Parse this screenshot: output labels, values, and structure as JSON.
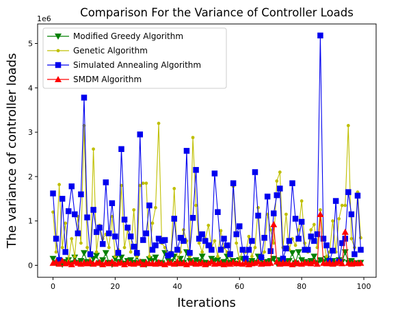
{
  "chart_data": {
    "type": "line",
    "title": "Comparison For the Variance of Controller Loads",
    "xlabel": "Iterations",
    "ylabel": "The variance of controller loads",
    "y_offset_label": "1e6",
    "xlim": [
      -4.95,
      103.95
    ],
    "ylim": [
      -0.27,
      5.44
    ],
    "xticks": [
      0,
      20,
      40,
      60,
      80,
      100
    ],
    "yticks": [
      0,
      1,
      2,
      3,
      4,
      5
    ],
    "grid": false,
    "legend_position": "top-left",
    "series": [
      {
        "name": "Modified Greedy Algorithm",
        "color": "#008000",
        "marker": "triangle-down",
        "values": [
          0.15,
          0.05,
          0.1,
          0.02,
          0.08,
          0.12,
          0.05,
          0.18,
          0.06,
          0.1,
          0.28,
          0.08,
          0.04,
          0.15,
          0.22,
          0.05,
          0.12,
          0.28,
          0.06,
          0.02,
          0.15,
          0.08,
          0.18,
          0.04,
          0.1,
          0.12,
          0.06,
          0.2,
          0.05,
          0.08,
          0.02,
          0.14,
          0.1,
          0.18,
          0.06,
          0.05,
          0.28,
          0.12,
          0.08,
          0.2,
          0.04,
          0.15,
          0.06,
          0.3,
          0.1,
          0.05,
          0.12,
          0.08,
          0.2,
          0.06,
          0.04,
          0.15,
          0.1,
          0.12,
          0.05,
          0.08,
          0.2,
          0.06,
          0.1,
          0.04,
          0.12,
          0.15,
          0.08,
          0.05,
          0.1,
          0.06,
          0.2,
          0.12,
          0.04,
          0.08,
          0.1,
          0.15,
          0.05,
          0.12,
          0.06,
          0.08,
          0.1,
          0.28,
          0.05,
          0.3,
          0.12,
          0.08,
          0.06,
          0.1,
          0.2,
          0.05,
          0.12,
          0.08,
          0.15,
          0.06,
          0.1,
          0.05,
          0.12,
          0.08,
          0.3,
          0.06,
          0.1,
          0.04,
          0.05,
          0.06
        ]
      },
      {
        "name": "Genetic Algorithm",
        "color": "#bfbf00",
        "marker": "point",
        "values": [
          1.2,
          0.3,
          1.82,
          0.4,
          0.95,
          0.1,
          0.6,
          0.2,
          1.1,
          0.5,
          3.15,
          0.4,
          0.05,
          2.62,
          0.3,
          0.9,
          0.6,
          0.7,
          0.4,
          1.1,
          0.2,
          0.35,
          1.8,
          0.4,
          0.8,
          0.3,
          1.25,
          0.2,
          1.8,
          1.85,
          1.85,
          0.2,
          0.95,
          1.3,
          3.2,
          0.5,
          0.4,
          0.2,
          0.3,
          1.73,
          0.1,
          0.3,
          0.8,
          0.55,
          0.2,
          2.88,
          1.35,
          0.5,
          0.3,
          0.6,
          0.9,
          0.4,
          0.55,
          0.2,
          0.78,
          0.4,
          0.3,
          0.2,
          1.78,
          0.5,
          0.1,
          0.35,
          0.3,
          0.65,
          0.2,
          0.4,
          1.3,
          0.2,
          0.3,
          1.15,
          0.8,
          0.5,
          1.9,
          2.1,
          0.4,
          1.15,
          0.35,
          0.6,
          0.45,
          0.8,
          1.45,
          0.5,
          0.3,
          0.8,
          0.92,
          0.4,
          1.25,
          0.6,
          0.2,
          0.3,
          1.0,
          0.3,
          1.05,
          1.35,
          1.35,
          3.15,
          0.6,
          0.4,
          1.65,
          0.62
        ]
      },
      {
        "name": "Simulated Annealing Algorithm",
        "color": "#0000ee",
        "marker": "square",
        "values": [
          1.62,
          0.6,
          0.12,
          1.5,
          0.3,
          1.22,
          1.78,
          1.15,
          0.72,
          1.6,
          3.78,
          1.08,
          0.25,
          1.25,
          0.75,
          0.85,
          0.48,
          1.87,
          0.72,
          1.4,
          0.65,
          0.28,
          2.62,
          1.03,
          0.85,
          0.65,
          0.42,
          0.28,
          2.95,
          0.57,
          0.72,
          1.35,
          0.35,
          0.45,
          0.6,
          0.55,
          0.57,
          0.22,
          0.25,
          1.05,
          0.35,
          0.62,
          0.55,
          2.58,
          0.28,
          1.07,
          2.15,
          0.6,
          0.7,
          0.55,
          0.45,
          0.35,
          2.07,
          1.2,
          0.35,
          0.6,
          0.45,
          0.25,
          1.85,
          0.7,
          0.88,
          0.35,
          0.15,
          0.35,
          0.55,
          2.1,
          1.12,
          0.18,
          0.62,
          1.55,
          0.32,
          1.17,
          1.58,
          1.73,
          0.15,
          0.38,
          0.55,
          1.85,
          1.05,
          0.6,
          0.98,
          0.35,
          0.35,
          0.65,
          0.55,
          0.7,
          5.18,
          0.6,
          0.45,
          0.1,
          0.33,
          1.45,
          0.08,
          0.5,
          0.6,
          1.65,
          1.15,
          0.25,
          1.57,
          0.35
        ]
      },
      {
        "name": "SMDM Algorithm",
        "color": "#ff0000",
        "marker": "triangle-up",
        "values": [
          0.05,
          0.08,
          0.03,
          0.1,
          0.04,
          0.06,
          0.02,
          0.08,
          0.05,
          0.03,
          0.06,
          0.04,
          0.08,
          0.03,
          0.05,
          0.07,
          0.02,
          0.06,
          0.04,
          0.08,
          0.03,
          0.05,
          0.06,
          0.02,
          0.07,
          0.04,
          0.03,
          0.05,
          0.08,
          0.02,
          0.06,
          0.04,
          0.05,
          0.03,
          0.07,
          0.04,
          0.02,
          0.06,
          0.05,
          0.03,
          0.08,
          0.04,
          0.06,
          0.02,
          0.05,
          0.07,
          0.03,
          0.04,
          0.06,
          0.02,
          0.05,
          0.08,
          0.03,
          0.04,
          0.06,
          0.02,
          0.05,
          0.03,
          0.07,
          0.04,
          0.05,
          0.03,
          0.06,
          0.02,
          0.04,
          0.05,
          0.08,
          0.03,
          0.06,
          0.04,
          0.05,
          0.92,
          0.08,
          0.03,
          0.06,
          0.04,
          0.05,
          0.02,
          0.07,
          0.04,
          0.03,
          0.06,
          0.05,
          0.04,
          0.08,
          0.03,
          1.15,
          0.05,
          0.04,
          0.06,
          0.03,
          0.05,
          0.08,
          0.04,
          0.75,
          0.05,
          0.03,
          0.06,
          0.04,
          0.05
        ]
      }
    ]
  }
}
